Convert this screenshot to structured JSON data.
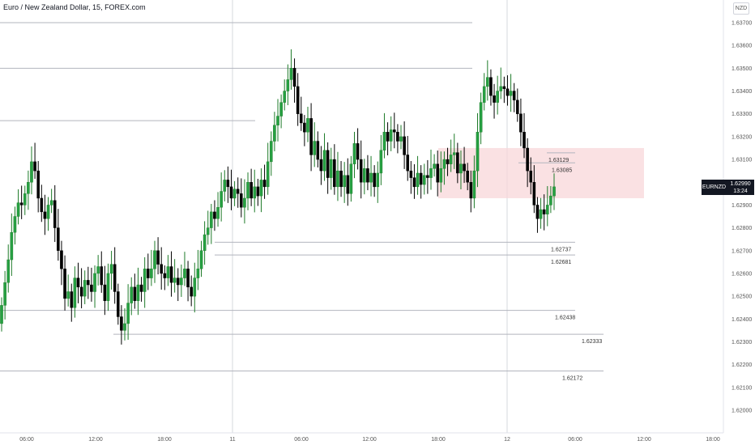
{
  "title": "Euro / New Zealand Dollar, 15, FOREX.com",
  "currency": "NZD",
  "symbol_tag": "EURNZD",
  "last_price": "1.62990",
  "countdown": "13:24",
  "colors": {
    "up": "#1e7b29",
    "up_fill": "#26a042",
    "down": "#000000",
    "zone": "#f8d7da",
    "level": "#b2b5be"
  },
  "chart_data": {
    "type": "candlestick",
    "y_range": [
      1.6195,
      1.6375
    ],
    "y_ticks": [
      "1.63700",
      "1.63600",
      "1.63500",
      "1.63400",
      "1.63300",
      "1.63200",
      "1.63100",
      "1.63000",
      "1.62900",
      "1.62800",
      "1.62700",
      "1.62600",
      "1.62500",
      "1.62400",
      "1.62300",
      "1.62200",
      "1.62100",
      "1.62000"
    ],
    "x_ticks": [
      "06:00",
      "12:00",
      "18:00",
      "11",
      "06:00",
      "12:00",
      "18:00",
      "12",
      "06:00",
      "12:00",
      "18:00"
    ],
    "levels": [
      {
        "price": 1.637,
        "label": ""
      },
      {
        "price": 1.635,
        "label": ""
      },
      {
        "price": 1.6327,
        "label": ""
      },
      {
        "price": 1.63129,
        "label": "1.63129"
      },
      {
        "price": 1.63085,
        "label": "1.63085"
      },
      {
        "price": 1.62737,
        "label": "1.62737"
      },
      {
        "price": 1.62681,
        "label": "1.62681"
      },
      {
        "price": 1.62438,
        "label": "1.62438"
      },
      {
        "price": 1.62333,
        "label": "1.62333"
      },
      {
        "price": 1.62172,
        "label": "1.62172"
      }
    ],
    "zone": {
      "from": 1.6293,
      "to": 1.6315,
      "start": "18:00",
      "end": "12 06:00+"
    },
    "closes": [
      1.6246,
      1.6256,
      1.6266,
      1.6278,
      1.6285,
      1.6291,
      1.629,
      1.6295,
      1.63,
      1.6309,
      1.6305,
      1.6293,
      1.6287,
      1.6284,
      1.629,
      1.6292,
      1.628,
      1.627,
      1.6262,
      1.6249,
      1.6252,
      1.6245,
      1.6258,
      1.6254,
      1.625,
      1.6257,
      1.6255,
      1.6252,
      1.626,
      1.6263,
      1.6255,
      1.6248,
      1.626,
      1.6264,
      1.6252,
      1.6241,
      1.6235,
      1.6238,
      1.6247,
      1.6254,
      1.6248,
      1.6255,
      1.6252,
      1.6262,
      1.6258,
      1.6262,
      1.627,
      1.6264,
      1.626,
      1.6258,
      1.6263,
      1.6256,
      1.6258,
      1.6255,
      1.6258,
      1.6262,
      1.6254,
      1.625,
      1.6258,
      1.6262,
      1.627,
      1.6277,
      1.628,
      1.6287,
      1.6284,
      1.6289,
      1.6296,
      1.6301,
      1.6298,
      1.6293,
      1.6297,
      1.6295,
      1.6289,
      1.6293,
      1.63,
      1.6293,
      1.6298,
      1.6294,
      1.6301,
      1.6298,
      1.6309,
      1.6318,
      1.6325,
      1.6329,
      1.6335,
      1.634,
      1.6345,
      1.635,
      1.6342,
      1.633,
      1.6326,
      1.6322,
      1.6328,
      1.6312,
      1.6318,
      1.631,
      1.6305,
      1.6314,
      1.6302,
      1.631,
      1.6298,
      1.6305,
      1.6298,
      1.6303,
      1.6295,
      1.6308,
      1.6317,
      1.631,
      1.63,
      1.6306,
      1.63,
      1.6304,
      1.6298,
      1.6304,
      1.6314,
      1.6322,
      1.6318,
      1.6323,
      1.6322,
      1.6318,
      1.632,
      1.6312,
      1.6305,
      1.6302,
      1.6298,
      1.6304,
      1.6299,
      1.6303,
      1.6302,
      1.6306,
      1.6308,
      1.63,
      1.6306,
      1.631,
      1.6308,
      1.6312,
      1.6313,
      1.6304,
      1.6308,
      1.6305,
      1.63,
      1.6293,
      1.6305,
      1.6322,
      1.6335,
      1.6342,
      1.6346,
      1.6338,
      1.6335,
      1.634,
      1.6342,
      1.6341,
      1.6338,
      1.634,
      1.6336,
      1.633,
      1.6322,
      1.6315,
      1.6305,
      1.63,
      1.629,
      1.6284,
      1.6288,
      1.6286,
      1.629,
      1.6294,
      1.6298
    ]
  }
}
